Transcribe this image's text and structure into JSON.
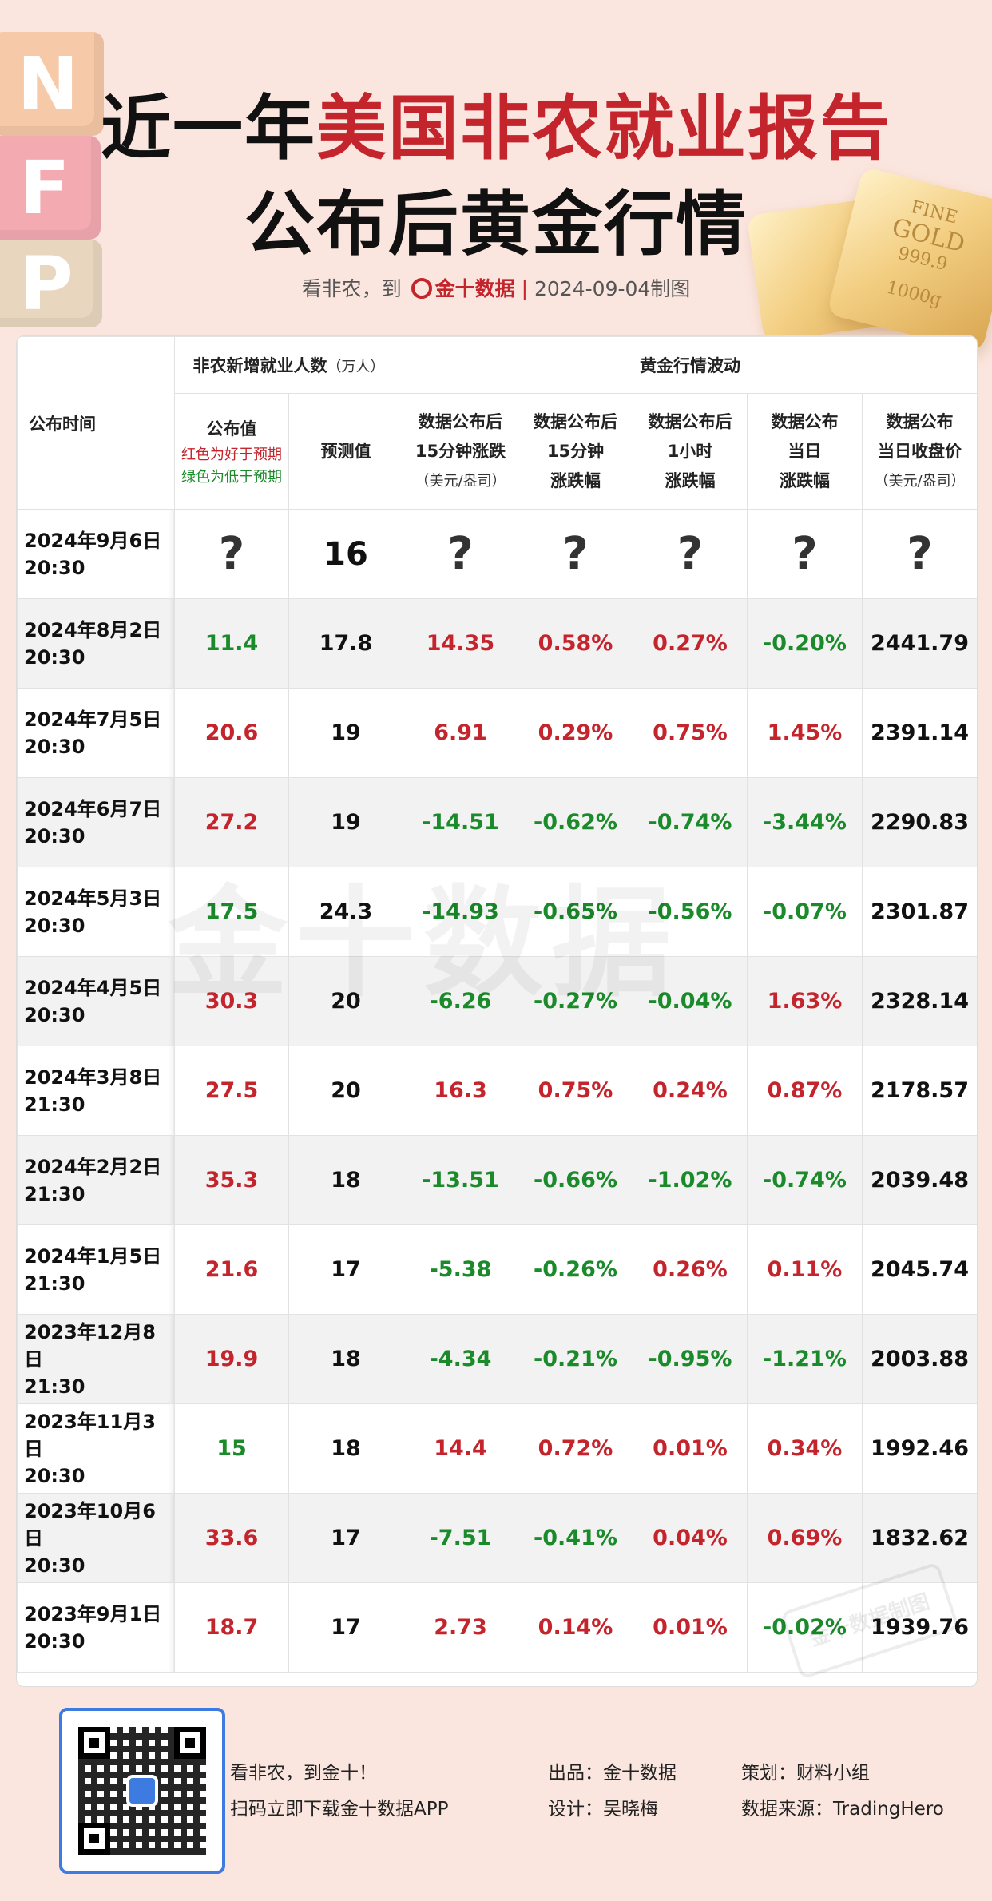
{
  "decor": {
    "blocks": [
      "N",
      "F",
      "P"
    ],
    "gold_text": [
      "FINE",
      "GOLD",
      "999.9",
      "1000g"
    ]
  },
  "title": {
    "line1_prefix": "近一年",
    "line1_highlight": "美国非农就业报告",
    "line2": "公布后黄金行情"
  },
  "subline": {
    "prefix": "看非农，到",
    "brand": "金十数据",
    "divider": "|",
    "date": "2024-09-04制图"
  },
  "table": {
    "header": {
      "date_col": "公布时间",
      "group_nfp": "非农新增就业人数",
      "group_nfp_unit": "（万人）",
      "group_gold": "黄金行情波动",
      "actual": "公布值",
      "actual_note_red": "红色为好于预期",
      "actual_note_green": "绿色为低于预期",
      "forecast": "预测值",
      "c15m_l1": "数据公布后",
      "c15m_l2": "15分钟涨跌",
      "c15m_l3": "（美元/盎司）",
      "p15m_l1": "数据公布后",
      "p15m_l2": "15分钟",
      "p15m_l3": "涨跌幅",
      "p1h_l1": "数据公布后",
      "p1h_l2": "1小时",
      "p1h_l3": "涨跌幅",
      "pday_l1": "数据公布",
      "pday_l2": "当日",
      "pday_l3": "涨跌幅",
      "close_l1": "数据公布",
      "close_l2": "当日收盘价",
      "close_l3": "（美元/盎司）"
    },
    "rows": [
      {
        "date": "2024年9月6日",
        "time": "20:30",
        "actual": "?",
        "actual_c": "blk",
        "forecast": "16",
        "c15m": "?",
        "c15m_c": "blk",
        "p15m": "?",
        "p15m_c": "blk",
        "p1h": "?",
        "p1h_c": "blk",
        "pday": "?",
        "pday_c": "blk",
        "close": "?"
      },
      {
        "date": "2024年8月2日",
        "time": "20:30",
        "actual": "11.4",
        "actual_c": "neg",
        "forecast": "17.8",
        "c15m": "14.35",
        "c15m_c": "pos",
        "p15m": "0.58%",
        "p15m_c": "pos",
        "p1h": "0.27%",
        "p1h_c": "pos",
        "pday": "-0.20%",
        "pday_c": "neg",
        "close": "2441.79"
      },
      {
        "date": "2024年7月5日",
        "time": "20:30",
        "actual": "20.6",
        "actual_c": "pos",
        "forecast": "19",
        "c15m": "6.91",
        "c15m_c": "pos",
        "p15m": "0.29%",
        "p15m_c": "pos",
        "p1h": "0.75%",
        "p1h_c": "pos",
        "pday": "1.45%",
        "pday_c": "pos",
        "close": "2391.14"
      },
      {
        "date": "2024年6月7日",
        "time": "20:30",
        "actual": "27.2",
        "actual_c": "pos",
        "forecast": "19",
        "c15m": "-14.51",
        "c15m_c": "neg",
        "p15m": "-0.62%",
        "p15m_c": "neg",
        "p1h": "-0.74%",
        "p1h_c": "neg",
        "pday": "-3.44%",
        "pday_c": "neg",
        "close": "2290.83"
      },
      {
        "date": "2024年5月3日",
        "time": "20:30",
        "actual": "17.5",
        "actual_c": "neg",
        "forecast": "24.3",
        "c15m": "-14.93",
        "c15m_c": "neg",
        "p15m": "-0.65%",
        "p15m_c": "neg",
        "p1h": "-0.56%",
        "p1h_c": "neg",
        "pday": "-0.07%",
        "pday_c": "neg",
        "close": "2301.87"
      },
      {
        "date": "2024年4月5日",
        "time": "20:30",
        "actual": "30.3",
        "actual_c": "pos",
        "forecast": "20",
        "c15m": "-6.26",
        "c15m_c": "neg",
        "p15m": "-0.27%",
        "p15m_c": "neg",
        "p1h": "-0.04%",
        "p1h_c": "neg",
        "pday": "1.63%",
        "pday_c": "pos",
        "close": "2328.14"
      },
      {
        "date": "2024年3月8日",
        "time": "21:30",
        "actual": "27.5",
        "actual_c": "pos",
        "forecast": "20",
        "c15m": "16.3",
        "c15m_c": "pos",
        "p15m": "0.75%",
        "p15m_c": "pos",
        "p1h": "0.24%",
        "p1h_c": "pos",
        "pday": "0.87%",
        "pday_c": "pos",
        "close": "2178.57"
      },
      {
        "date": "2024年2月2日",
        "time": "21:30",
        "actual": "35.3",
        "actual_c": "pos",
        "forecast": "18",
        "c15m": "-13.51",
        "c15m_c": "neg",
        "p15m": "-0.66%",
        "p15m_c": "neg",
        "p1h": "-1.02%",
        "p1h_c": "neg",
        "pday": "-0.74%",
        "pday_c": "neg",
        "close": "2039.48"
      },
      {
        "date": "2024年1月5日",
        "time": "21:30",
        "actual": "21.6",
        "actual_c": "pos",
        "forecast": "17",
        "c15m": "-5.38",
        "c15m_c": "neg",
        "p15m": "-0.26%",
        "p15m_c": "neg",
        "p1h": "0.26%",
        "p1h_c": "pos",
        "pday": "0.11%",
        "pday_c": "pos",
        "close": "2045.74"
      },
      {
        "date": "2023年12月8日",
        "time": "21:30",
        "actual": "19.9",
        "actual_c": "pos",
        "forecast": "18",
        "c15m": "-4.34",
        "c15m_c": "neg",
        "p15m": "-0.21%",
        "p15m_c": "neg",
        "p1h": "-0.95%",
        "p1h_c": "neg",
        "pday": "-1.21%",
        "pday_c": "neg",
        "close": "2003.88"
      },
      {
        "date": "2023年11月3日",
        "time": "20:30",
        "actual": "15",
        "actual_c": "neg",
        "forecast": "18",
        "c15m": "14.4",
        "c15m_c": "pos",
        "p15m": "0.72%",
        "p15m_c": "pos",
        "p1h": "0.01%",
        "p1h_c": "pos",
        "pday": "0.34%",
        "pday_c": "pos",
        "close": "1992.46"
      },
      {
        "date": "2023年10月6日",
        "time": "20:30",
        "actual": "33.6",
        "actual_c": "pos",
        "forecast": "17",
        "c15m": "-7.51",
        "c15m_c": "neg",
        "p15m": "-0.41%",
        "p15m_c": "neg",
        "p1h": "0.04%",
        "p1h_c": "pos",
        "pday": "0.69%",
        "pday_c": "pos",
        "close": "1832.62"
      },
      {
        "date": "2023年9月1日",
        "time": "20:30",
        "actual": "18.7",
        "actual_c": "pos",
        "forecast": "17",
        "c15m": "2.73",
        "c15m_c": "pos",
        "p15m": "0.14%",
        "p15m_c": "pos",
        "p1h": "0.01%",
        "p1h_c": "pos",
        "pday": "-0.02%",
        "pday_c": "neg",
        "close": "1939.76"
      }
    ]
  },
  "watermark": "金十数据",
  "stamp": "金十数据制图",
  "footer": {
    "line1": "看非农，到金十！",
    "line2": "扫码立即下载金十数据APP",
    "producer": "出品：金十数据",
    "designer": "设计：吴晓梅",
    "planner": "策划：财料小组",
    "source": "数据来源：TradingHero"
  },
  "colors": {
    "positive": "#c4242c",
    "negative": "#1a8a2a",
    "background": "#fbe6df",
    "qr_frame": "#3d7be0"
  },
  "icons": [
    "qr-code-icon",
    "brand-logo-icon",
    "gold-bar-icon"
  ]
}
